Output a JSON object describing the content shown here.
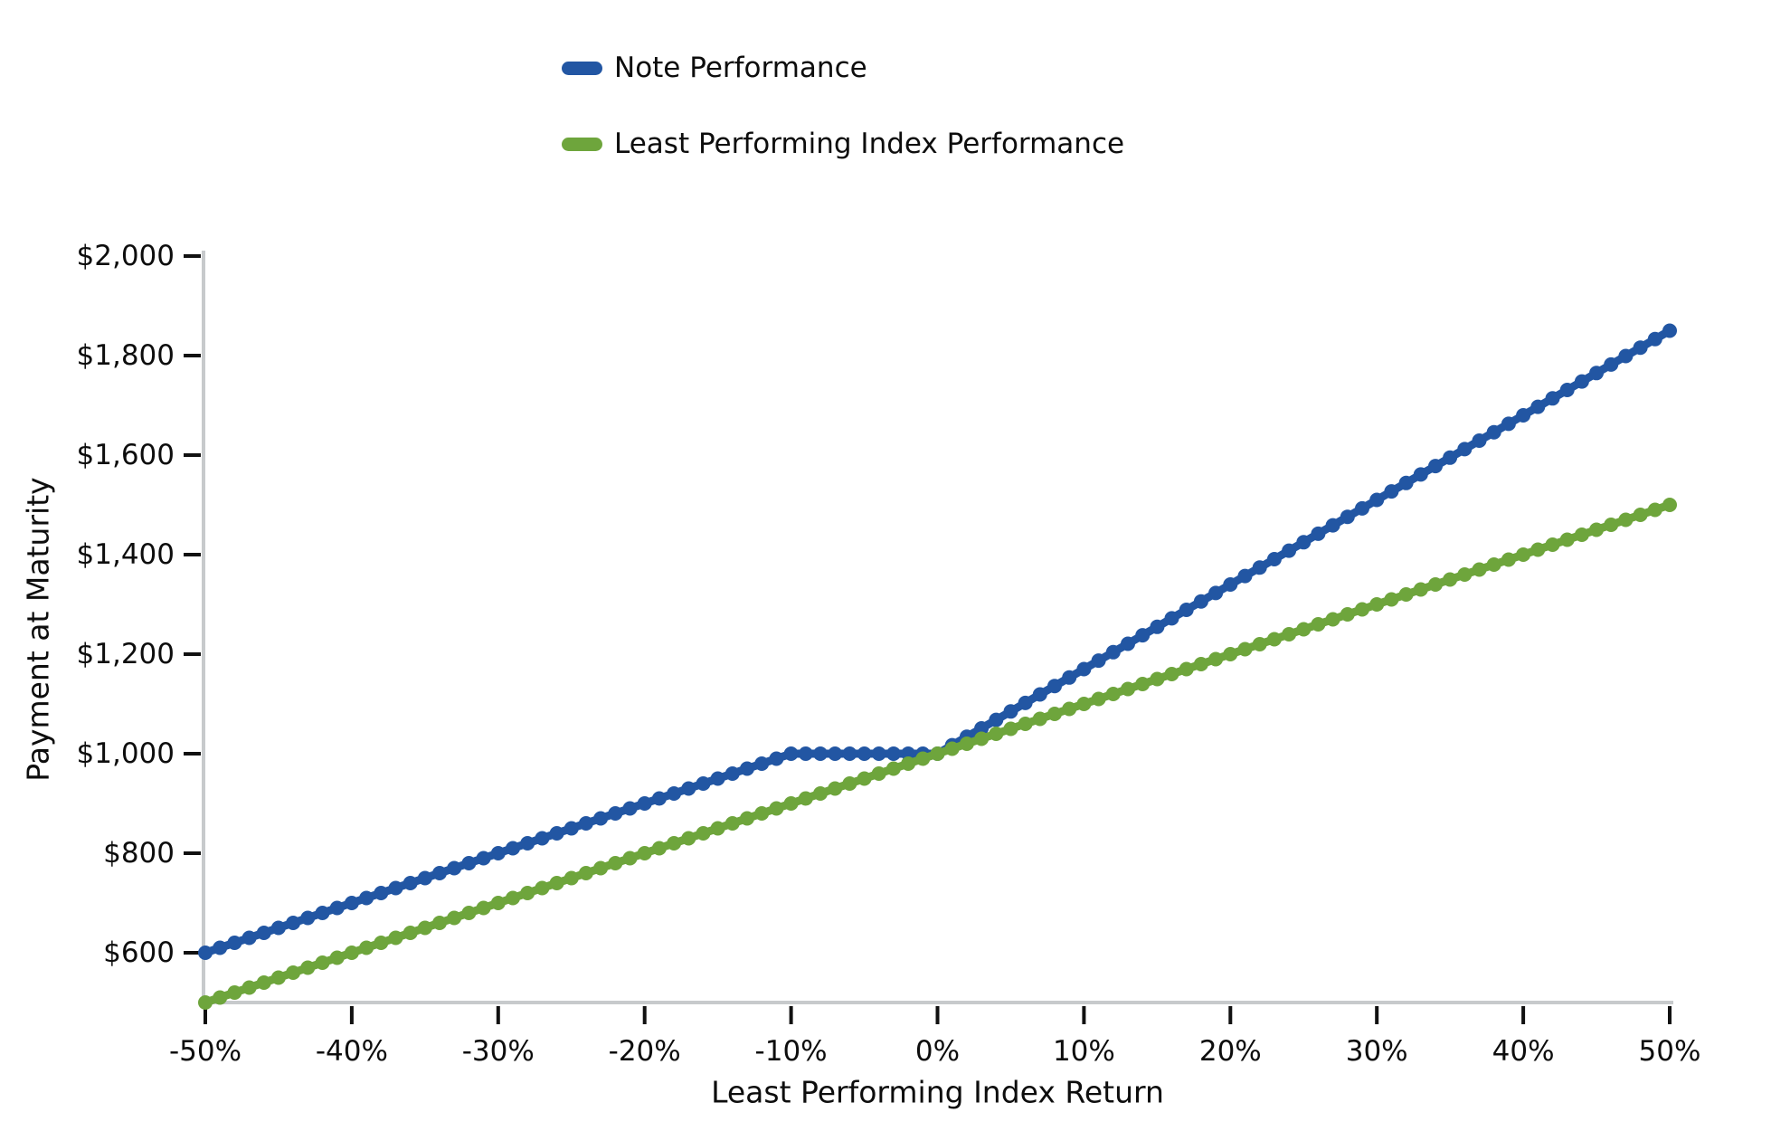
{
  "chart_data": {
    "type": "line",
    "title": "",
    "xlabel": "Least Performing Index Return",
    "ylabel": "Payment at Maturity",
    "xlim": [
      -50,
      50
    ],
    "ylim": [
      500,
      2000
    ],
    "grid": false,
    "legend_position": "top-center",
    "x_tick_unit": "percent",
    "x_ticks": [
      {
        "value": -50,
        "label": "-50%"
      },
      {
        "value": -40,
        "label": "-40%"
      },
      {
        "value": -30,
        "label": "-30%"
      },
      {
        "value": -20,
        "label": "-20%"
      },
      {
        "value": -10,
        "label": "-10%"
      },
      {
        "value": 0,
        "label": "0%"
      },
      {
        "value": 10,
        "label": "10%"
      },
      {
        "value": 20,
        "label": "20%"
      },
      {
        "value": 30,
        "label": "30%"
      },
      {
        "value": 40,
        "label": "40%"
      },
      {
        "value": 50,
        "label": "50%"
      }
    ],
    "y_ticks": [
      {
        "value": 600,
        "label": "$600"
      },
      {
        "value": 800,
        "label": "$800"
      },
      {
        "value": 1000,
        "label": "$1,000"
      },
      {
        "value": 1200,
        "label": "$1,200"
      },
      {
        "value": 1400,
        "label": "$1,400"
      },
      {
        "value": 1600,
        "label": "$1,600"
      },
      {
        "value": 1800,
        "label": "$1,800"
      },
      {
        "value": 2000,
        "label": "$2,000"
      }
    ],
    "marker_step_pct": 1,
    "marker_radius": 8,
    "line_width": 9,
    "series": [
      {
        "name": "Note Performance",
        "color": "#2256a3",
        "breakpoints": [
          [
            -50,
            600
          ],
          [
            -10,
            1000
          ],
          [
            0,
            1000
          ],
          [
            50,
            1850
          ]
        ]
      },
      {
        "name": "Least Performing Index Performance",
        "color": "#6ea53c",
        "breakpoints": [
          [
            -50,
            500
          ],
          [
            50,
            1500
          ]
        ]
      }
    ],
    "axis_color": "#c7cacc",
    "tick_color": "#111111",
    "text_color": "#0d0d0d"
  }
}
